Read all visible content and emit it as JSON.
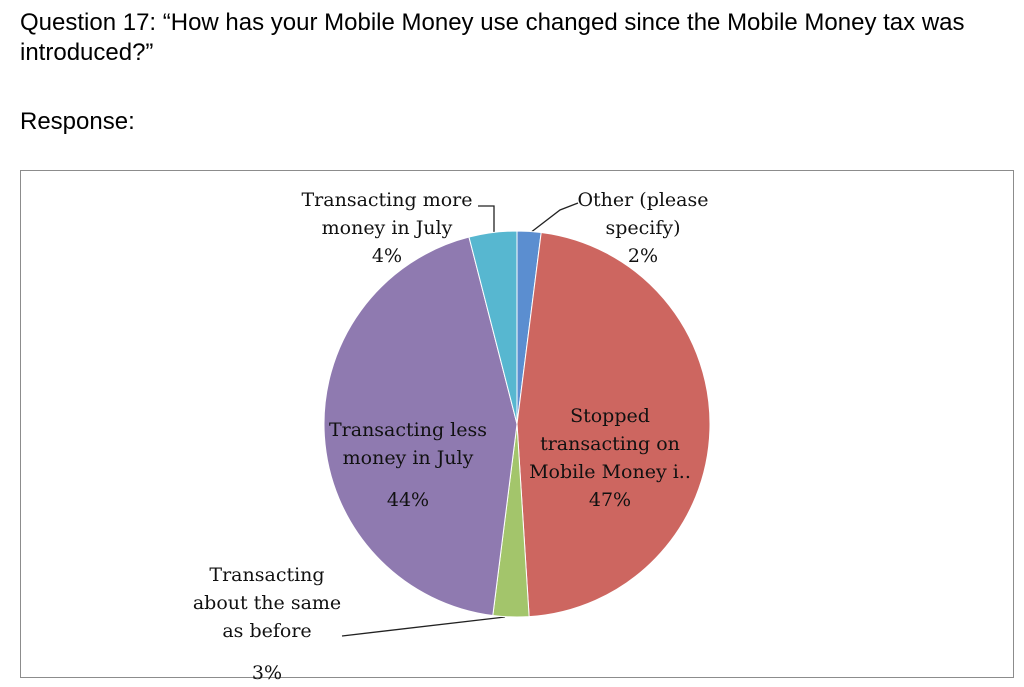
{
  "question": "Question 17: “How has your Mobile Money use changed since the Mobile Money tax was introduced?”",
  "response_label": "Response:",
  "chart_data": {
    "type": "pie",
    "categories": [
      "Other (please specify)",
      "Stopped transacting on Mobile Money i..",
      "Transacting about the same as before",
      "Transacting less money in July",
      "Transacting more money in July"
    ],
    "values": [
      2,
      47,
      3,
      44,
      4
    ],
    "value_labels": [
      "2%",
      "47%",
      "3%",
      "44%",
      "4%"
    ],
    "colors": [
      "#5b8ed0",
      "#cd6660",
      "#a3c56b",
      "#8f7ab0",
      "#57b7d0"
    ]
  }
}
